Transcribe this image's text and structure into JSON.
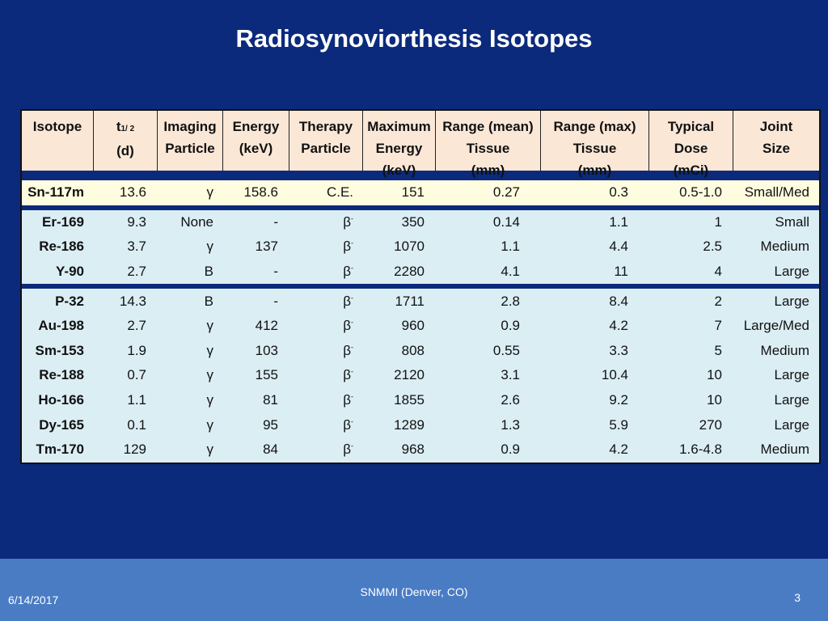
{
  "title": "Radiosynoviorthesis Isotopes",
  "table": {
    "headers": [
      {
        "main": "Isotope",
        "sub": ""
      },
      {
        "main": "t",
        "half": "1/ 2",
        "sub": "(d)"
      },
      {
        "main": "Imaging",
        "sub": "Particle"
      },
      {
        "main": "Energy",
        "sub": "(keV)"
      },
      {
        "main": "Therapy",
        "sub": "Particle"
      },
      {
        "main": "Maximum",
        "sub": "Energy\n(keV)"
      },
      {
        "main": "Range (mean)",
        "sub": "Tissue\n(mm)"
      },
      {
        "main": "Range (max)",
        "sub": "Tissue\n(mm)"
      },
      {
        "main": "Typical",
        "sub": "Dose\n(mCi)"
      },
      {
        "main": "Joint",
        "sub": "Size"
      }
    ],
    "groups": [
      {
        "style": "yellow",
        "rows": [
          [
            "Sn-117m",
            "13.6",
            "γ",
            "158.6",
            "C.E.",
            "151",
            "0.27",
            "0.3",
            "0.5-1.0",
            "Small/Med"
          ]
        ]
      },
      {
        "style": "blue",
        "rows": [
          [
            "Er-169",
            "9.3",
            "None",
            "-",
            "β-",
            "350",
            "0.14",
            "1.1",
            "1",
            "Small"
          ],
          [
            "Re-186",
            "3.7",
            "γ",
            "137",
            "β-",
            "1070",
            "1.1",
            "4.4",
            "2.5",
            "Medium"
          ],
          [
            "Y-90",
            "2.7",
            "Β",
            "-",
            "β-",
            "2280",
            "4.1",
            "11",
            "4",
            "Large"
          ]
        ]
      },
      {
        "style": "blue",
        "rows": [
          [
            "P-32",
            "14.3",
            "Β",
            "-",
            "β-",
            "1711",
            "2.8",
            "8.4",
            "2",
            "Large"
          ],
          [
            "Au-198",
            "2.7",
            "γ",
            "412",
            "β-",
            "960",
            "0.9",
            "4.2",
            "7",
            "Large/Med"
          ],
          [
            "Sm-153",
            "1.9",
            "γ",
            "103",
            "β-",
            "808",
            "0.55",
            "3.3",
            "5",
            "Medium"
          ],
          [
            "Re-188",
            "0.7",
            "γ",
            "155",
            "β-",
            "2120",
            "3.1",
            "10.4",
            "10",
            "Large"
          ],
          [
            "Ho-166",
            "1.1",
            "γ",
            "81",
            "β-",
            "1855",
            "2.6",
            "9.2",
            "10",
            "Large"
          ],
          [
            "Dy-165",
            "0.1",
            "γ",
            "95",
            "β-",
            "1289",
            "1.3",
            "5.9",
            "270",
            "Large"
          ],
          [
            "Tm-170",
            "129",
            "γ",
            "84",
            "β-",
            "968",
            "0.9",
            "4.2",
            "1.6-4.8",
            "Medium"
          ]
        ]
      }
    ]
  },
  "footer": {
    "date": "6/14/2017",
    "center": "SNMMI (Denver, CO)",
    "page": "3"
  }
}
